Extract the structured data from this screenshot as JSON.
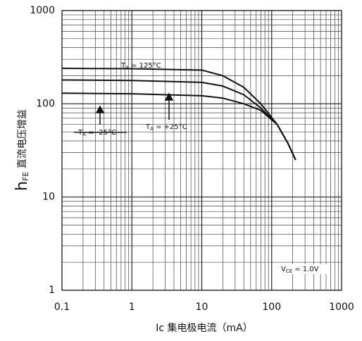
{
  "chart_data": {
    "type": "line",
    "log_x": true,
    "log_y": true,
    "grid": true,
    "minor_grid": true,
    "xlabel": "Ic  集电极电流（mA）",
    "ylabel": {
      "main": "h",
      "sub": "FE",
      "rest": " 直流电压增益"
    },
    "xlim": [
      0.1,
      1000
    ],
    "ylim": [
      1,
      1000
    ],
    "xticks": [
      0.1,
      1,
      10,
      100,
      1000
    ],
    "yticks": [
      1,
      10,
      100,
      1000
    ],
    "x": [
      0.1,
      1,
      10,
      20,
      40,
      70,
      120,
      170,
      220
    ],
    "series": [
      {
        "main": "T",
        "sub": "A",
        "rest": " = 125°C",
        "color": "#111111",
        "values": [
          240,
          238,
          230,
          200,
          150,
          100,
          60,
          38,
          25
        ]
      },
      {
        "main": "T",
        "sub": "A",
        "rest": " = +25°C",
        "color": "#111111",
        "values": [
          180,
          178,
          170,
          155,
          125,
          90,
          60,
          38,
          25
        ]
      },
      {
        "main": "T",
        "sub": "A",
        "rest": " = -25°C",
        "color": "#111111",
        "values": [
          130,
          128,
          122,
          115,
          100,
          85,
          60,
          38,
          25
        ]
      }
    ],
    "condition": {
      "main": "V",
      "sub": "CE",
      "rest": " = 1.0V"
    }
  }
}
